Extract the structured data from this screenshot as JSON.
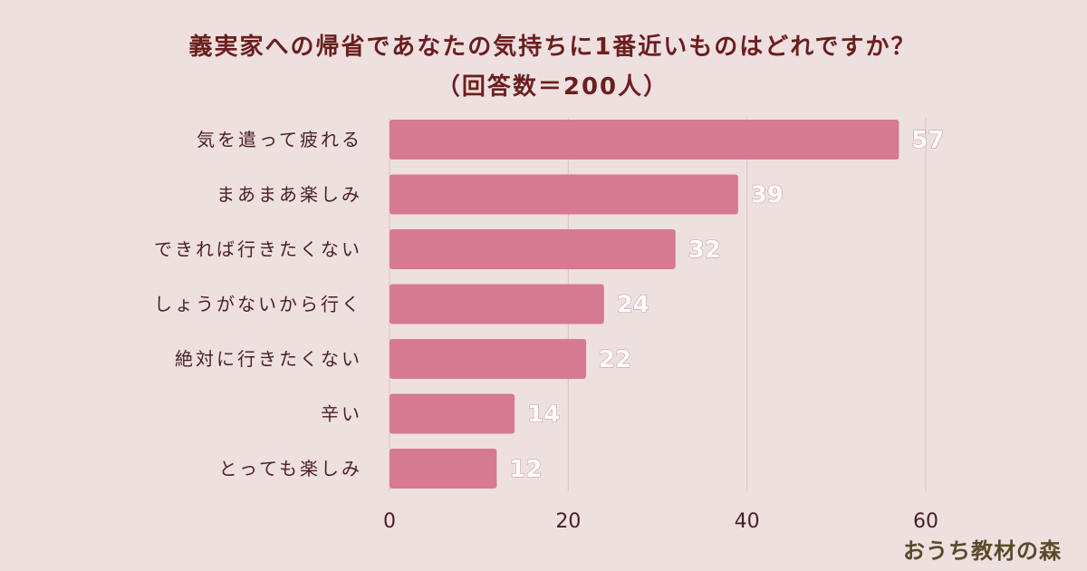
{
  "chart_data": {
    "type": "bar",
    "orientation": "horizontal",
    "title": "義実家への帰省であなたの気持ちに1番近いものはどれですか？",
    "subtitle": "（回答数＝200人）",
    "categories": [
      "気を遣って疲れる",
      "まあまあ楽しみ",
      "できれば行きたくない",
      "しょうがないから行く",
      "絶対に行きたくない",
      "辛い",
      "とっても楽しみ"
    ],
    "values": [
      57,
      39,
      32,
      24,
      22,
      14,
      12
    ],
    "xlim": [
      0,
      60
    ],
    "xticks": [
      0,
      20,
      40,
      60
    ],
    "grid": true,
    "bar_color": "#d67a91",
    "value_label_color": "#ffffff"
  },
  "watermark": "おうち教材の森"
}
